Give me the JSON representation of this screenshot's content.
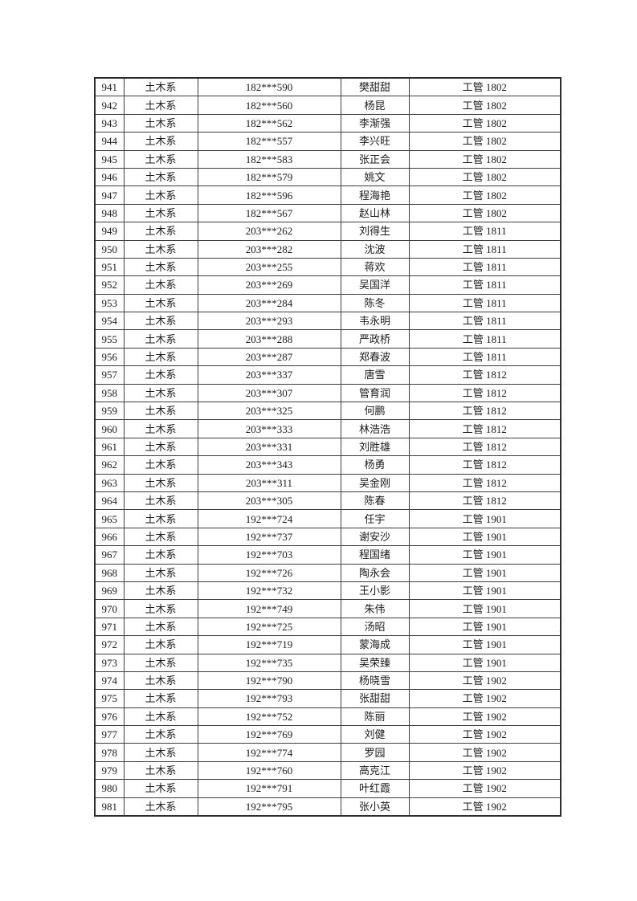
{
  "page": {
    "background_color": "#ffffff",
    "text_color": "#1c1c1c",
    "border_color": "#3d3d3d"
  },
  "table": {
    "columns": [
      {
        "key": "no"
      },
      {
        "key": "department"
      },
      {
        "key": "student_id"
      },
      {
        "key": "name"
      },
      {
        "key": "class_name"
      }
    ],
    "rows": [
      [
        "941",
        "土木系",
        "182***590",
        "樊甜甜",
        "工管 1802"
      ],
      [
        "942",
        "土木系",
        "182***560",
        "杨昆",
        "工管 1802"
      ],
      [
        "943",
        "土木系",
        "182***562",
        "李渐强",
        "工管 1802"
      ],
      [
        "944",
        "土木系",
        "182***557",
        "李兴旺",
        "工管 1802"
      ],
      [
        "945",
        "土木系",
        "182***583",
        "张正会",
        "工管 1802"
      ],
      [
        "946",
        "土木系",
        "182***579",
        "姚文",
        "工管 1802"
      ],
      [
        "947",
        "土木系",
        "182***596",
        "程海艳",
        "工管 1802"
      ],
      [
        "948",
        "土木系",
        "182***567",
        "赵山林",
        "工管 1802"
      ],
      [
        "949",
        "土木系",
        "203***262",
        "刘得生",
        "工管 1811"
      ],
      [
        "950",
        "土木系",
        "203***282",
        "沈波",
        "工管 1811"
      ],
      [
        "951",
        "土木系",
        "203***255",
        "蒋欢",
        "工管 1811"
      ],
      [
        "952",
        "土木系",
        "203***269",
        "吴国洋",
        "工管 1811"
      ],
      [
        "953",
        "土木系",
        "203***284",
        "陈冬",
        "工管 1811"
      ],
      [
        "954",
        "土木系",
        "203***293",
        "韦永明",
        "工管 1811"
      ],
      [
        "955",
        "土木系",
        "203***288",
        "严政桥",
        "工管 1811"
      ],
      [
        "956",
        "土木系",
        "203***287",
        "郑春波",
        "工管 1811"
      ],
      [
        "957",
        "土木系",
        "203***337",
        "唐雪",
        "工管 1812"
      ],
      [
        "958",
        "土木系",
        "203***307",
        "管育润",
        "工管 1812"
      ],
      [
        "959",
        "土木系",
        "203***325",
        "何鹏",
        "工管 1812"
      ],
      [
        "960",
        "土木系",
        "203***333",
        "林浩浩",
        "工管 1812"
      ],
      [
        "961",
        "土木系",
        "203***331",
        "刘胜雄",
        "工管 1812"
      ],
      [
        "962",
        "土木系",
        "203***343",
        "杨勇",
        "工管 1812"
      ],
      [
        "963",
        "土木系",
        "203***311",
        "吴金刚",
        "工管 1812"
      ],
      [
        "964",
        "土木系",
        "203***305",
        "陈春",
        "工管 1812"
      ],
      [
        "965",
        "土木系",
        "192***724",
        "任宇",
        "工管 1901"
      ],
      [
        "966",
        "土木系",
        "192***737",
        "谢安沙",
        "工管 1901"
      ],
      [
        "967",
        "土木系",
        "192***703",
        "程国绪",
        "工管 1901"
      ],
      [
        "968",
        "土木系",
        "192***726",
        "陶永会",
        "工管 1901"
      ],
      [
        "969",
        "土木系",
        "192***732",
        "王小影",
        "工管 1901"
      ],
      [
        "970",
        "土木系",
        "192***749",
        "朱伟",
        "工管 1901"
      ],
      [
        "971",
        "土木系",
        "192***725",
        "汤昭",
        "工管 1901"
      ],
      [
        "972",
        "土木系",
        "192***719",
        "蒙海成",
        "工管 1901"
      ],
      [
        "973",
        "土木系",
        "192***735",
        "吴荣臻",
        "工管 1901"
      ],
      [
        "974",
        "土木系",
        "192***790",
        "杨晓雪",
        "工管 1902"
      ],
      [
        "975",
        "土木系",
        "192***793",
        "张甜甜",
        "工管 1902"
      ],
      [
        "976",
        "土木系",
        "192***752",
        "陈丽",
        "工管 1902"
      ],
      [
        "977",
        "土木系",
        "192***769",
        "刘健",
        "工管 1902"
      ],
      [
        "978",
        "土木系",
        "192***774",
        "罗园",
        "工管 1902"
      ],
      [
        "979",
        "土木系",
        "192***760",
        "高克江",
        "工管 1902"
      ],
      [
        "980",
        "土木系",
        "192***791",
        "叶红霞",
        "工管 1902"
      ],
      [
        "981",
        "土木系",
        "192***795",
        "张小英",
        "工管 1902"
      ]
    ]
  }
}
